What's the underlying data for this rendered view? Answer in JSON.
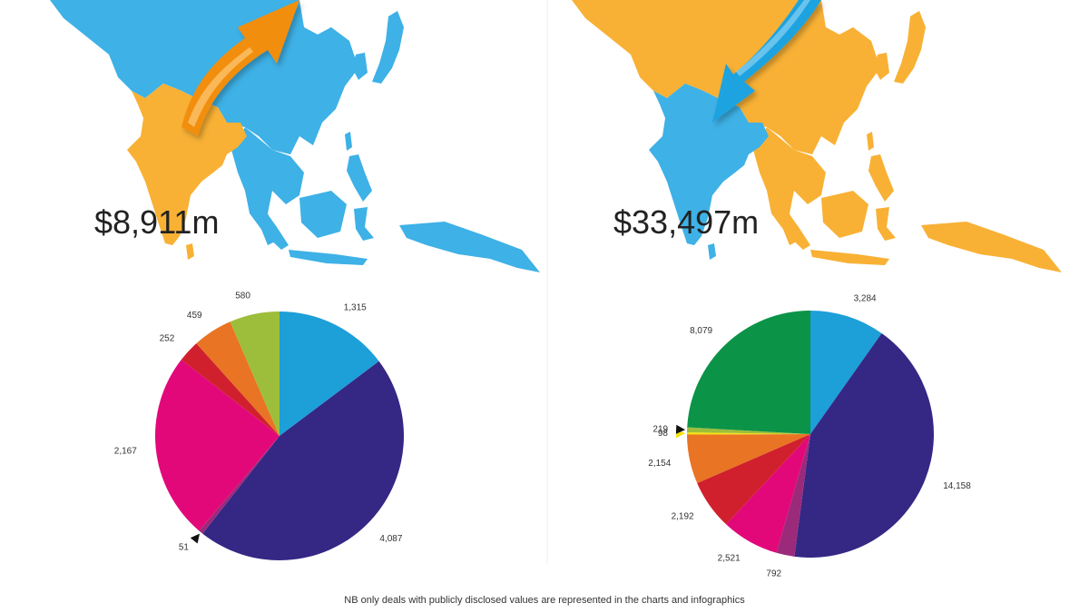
{
  "colors": {
    "map_blue": "#3EB1E6",
    "map_orange": "#F8B135",
    "arrow_orange": "#F28E0C",
    "arrow_blue": "#1CA3E0",
    "divider": "#EEEEEE"
  },
  "panels": [
    {
      "total": "$8,911m",
      "map_base_color": "#3EB1E6",
      "map_highlight_color": "#F8B135",
      "arrow_color": "#F28E0C",
      "arrow_direction": "outbound"
    },
    {
      "total": "$33,497m",
      "map_base_color": "#F8B135",
      "map_highlight_color": "#3EB1E6",
      "arrow_color": "#1CA3E0",
      "arrow_direction": "inbound"
    }
  ],
  "chart_data": [
    {
      "type": "pie",
      "title": "",
      "slices": [
        {
          "label": "1,315",
          "value": 1315,
          "color": "#1D9FD8"
        },
        {
          "label": "4,087",
          "value": 4087,
          "color": "#352784"
        },
        {
          "label": "51",
          "value": 51,
          "color": "#9B2A7B"
        },
        {
          "label": "2,167",
          "value": 2167,
          "color": "#E2087A"
        },
        {
          "label": "252",
          "value": 252,
          "color": "#D1202D"
        },
        {
          "label": "459",
          "value": 459,
          "color": "#E87424"
        },
        {
          "label": "580",
          "value": 580,
          "color": "#9DBE3B"
        }
      ]
    },
    {
      "type": "pie",
      "title": "",
      "slices": [
        {
          "label": "3,284",
          "value": 3284,
          "color": "#1D9FD8"
        },
        {
          "label": "14,158",
          "value": 14158,
          "color": "#352784"
        },
        {
          "label": "792",
          "value": 792,
          "color": "#9B2A7B"
        },
        {
          "label": "2,521",
          "value": 2521,
          "color": "#E2087A"
        },
        {
          "label": "2,192",
          "value": 2192,
          "color": "#D1202D"
        },
        {
          "label": "2,154",
          "value": 2154,
          "color": "#E87424"
        },
        {
          "label": "98",
          "value": 98,
          "color": "#F5E10F"
        },
        {
          "label": "219",
          "value": 219,
          "color": "#9DBE3B"
        },
        {
          "label": "8,079",
          "value": 8079,
          "color": "#0B9347"
        }
      ]
    }
  ],
  "footnote": "NB only deals with publicly disclosed values are represented in the charts and infographics"
}
